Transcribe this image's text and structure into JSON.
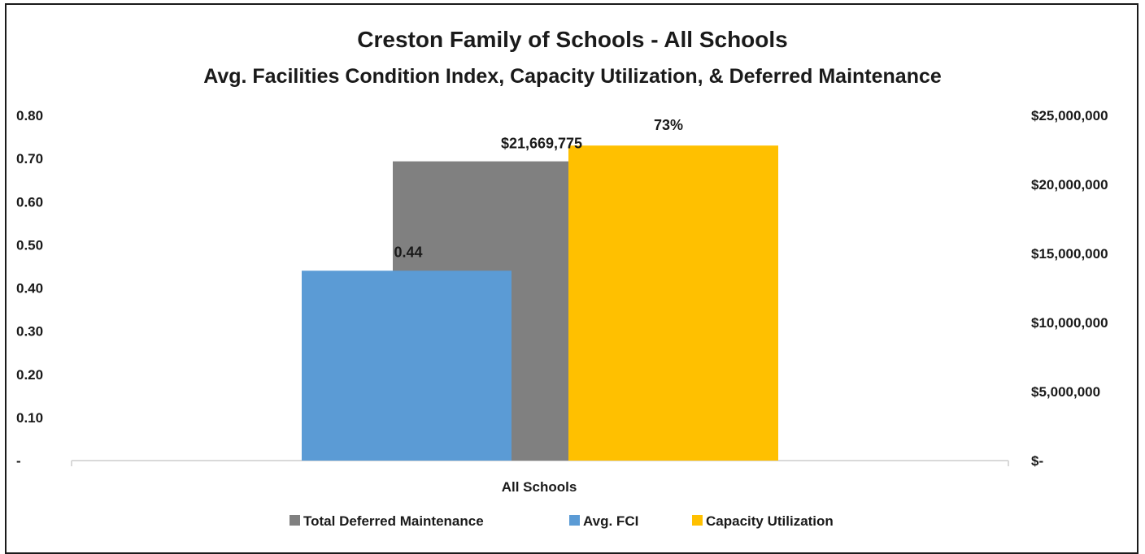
{
  "chart_data": {
    "type": "bar",
    "title": "Creston Family of Schools - All Schools",
    "subtitle": "Avg. Facilities Condition Index, Capacity Utilization, & Deferred Maintenance",
    "categories": [
      "All Schools"
    ],
    "series": [
      {
        "name": "Total Deferred Maintenance",
        "values": [
          21669775
        ],
        "axis": "right",
        "data_label": "$21,669,775",
        "color": "#808080"
      },
      {
        "name": "Avg. FCI",
        "values": [
          0.44
        ],
        "axis": "left",
        "data_label": "0.44",
        "color": "#5b9bd5"
      },
      {
        "name": "Capacity Utilization",
        "values": [
          0.73
        ],
        "axis": "left",
        "data_label": "73%",
        "color": "#ffc000"
      }
    ],
    "left_axis": {
      "ylim": [
        0,
        0.8
      ],
      "ticks": [
        0,
        0.1,
        0.2,
        0.3,
        0.4,
        0.5,
        0.6,
        0.7,
        0.8
      ],
      "tick_labels": [
        "-",
        "0.10",
        "0.20",
        "0.30",
        "0.40",
        "0.50",
        "0.60",
        "0.70",
        "0.80"
      ]
    },
    "right_axis": {
      "ylim": [
        0,
        25000000
      ],
      "ticks": [
        0,
        5000000,
        10000000,
        15000000,
        20000000,
        25000000
      ],
      "tick_labels": [
        "$-",
        "$5,000,000",
        "$10,000,000",
        "$15,000,000",
        "$20,000,000",
        "$25,000,000"
      ]
    },
    "xlabel": "All Schools",
    "legend": [
      "Total Deferred Maintenance",
      "Avg. FCI",
      "Capacity Utilization"
    ],
    "legend_position": "bottom",
    "grid": false
  }
}
